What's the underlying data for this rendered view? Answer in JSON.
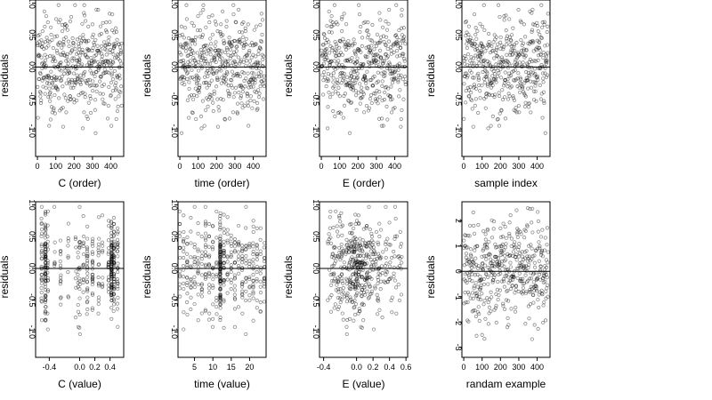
{
  "figure": {
    "background": "#ffffff",
    "point_color": "#000000",
    "point_opacity": 0.45
  },
  "chart_data": [
    {
      "type": "scatter",
      "xlabel": "C (order)",
      "ylabel": "residuals",
      "xlim": [
        -10,
        470
      ],
      "ylim": [
        -1.4,
        1.05
      ],
      "xticks": [
        0,
        100,
        200,
        300,
        400
      ],
      "xtick_labels": [
        "0",
        "100",
        "200",
        "300",
        "400"
      ],
      "yticks": [
        -1.0,
        -0.5,
        0.0,
        0.5,
        1.0
      ],
      "ytick_labels": [
        "-1.0",
        "-0.5",
        "0.0",
        "0.5",
        "1.0"
      ],
      "hline": 0,
      "points": []
    },
    {
      "type": "scatter",
      "xlabel": "time (order)",
      "ylabel": "residuals",
      "xlim": [
        -10,
        470
      ],
      "ylim": [
        -1.4,
        1.05
      ],
      "xticks": [
        0,
        100,
        200,
        300,
        400
      ],
      "xtick_labels": [
        "0",
        "100",
        "200",
        "300",
        "400"
      ],
      "yticks": [
        -1.0,
        -0.5,
        0.0,
        0.5,
        1.0
      ],
      "ytick_labels": [
        "-1.0",
        "-0.5",
        "0.0",
        "0.5",
        "1.0"
      ],
      "hline": 0,
      "points": []
    },
    {
      "type": "scatter",
      "xlabel": "E (order)",
      "ylabel": "residuals",
      "xlim": [
        -10,
        470
      ],
      "ylim": [
        -1.4,
        1.05
      ],
      "xticks": [
        0,
        100,
        200,
        300,
        400
      ],
      "xtick_labels": [
        "0",
        "100",
        "200",
        "300",
        "400"
      ],
      "yticks": [
        -1.0,
        -0.5,
        0.0,
        0.5,
        1.0
      ],
      "ytick_labels": [
        "-1.0",
        "-0.5",
        "0.0",
        "0.5",
        "1.0"
      ],
      "hline": 0,
      "points": []
    },
    {
      "type": "scatter",
      "xlabel": "sample index",
      "ylabel": "residuals",
      "xlim": [
        -10,
        470
      ],
      "ylim": [
        -1.4,
        1.05
      ],
      "xticks": [
        0,
        100,
        200,
        300,
        400
      ],
      "xtick_labels": [
        "0",
        "100",
        "200",
        "300",
        "400"
      ],
      "yticks": [
        -1.0,
        -0.5,
        0.0,
        0.5,
        1.0
      ],
      "ytick_labels": [
        "-1.0",
        "-0.5",
        "0.0",
        "0.5",
        "1.0"
      ],
      "hline": 0,
      "points": []
    },
    {
      "type": "scatter",
      "xlabel": "C (value)",
      "ylabel": "residuals",
      "xlim": [
        -0.58,
        0.58
      ],
      "ylim": [
        -1.4,
        1.05
      ],
      "xticks": [
        -0.4,
        0.0,
        0.2,
        0.4
      ],
      "xtick_labels": [
        "-0.4",
        "0.0",
        "0.2",
        "0.4"
      ],
      "yticks": [
        -1.0,
        -0.5,
        0.0,
        0.5,
        1.0
      ],
      "ytick_labels": [
        "-1.0",
        "-0.5",
        "0.0",
        "0.5",
        "1.0"
      ],
      "hline": 0,
      "points": []
    },
    {
      "type": "scatter",
      "xlabel": "time (value)",
      "ylabel": "residuals",
      "xlim": [
        0.5,
        24.5
      ],
      "ylim": [
        -1.4,
        1.05
      ],
      "xticks": [
        5,
        10,
        15,
        20
      ],
      "xtick_labels": [
        "5",
        "10",
        "15",
        "20"
      ],
      "yticks": [
        -1.0,
        -0.5,
        0.0,
        0.5,
        1.0
      ],
      "ytick_labels": [
        "-1.0",
        "-0.5",
        "0.0",
        "0.5",
        "1.0"
      ],
      "hline": 0,
      "points": []
    },
    {
      "type": "scatter",
      "xlabel": "E (value)",
      "ylabel": "residuals",
      "xlim": [
        -0.45,
        0.62
      ],
      "ylim": [
        -1.4,
        1.05
      ],
      "xticks": [
        -0.4,
        0.0,
        0.2,
        0.4,
        0.6
      ],
      "xtick_labels": [
        "-0.4",
        "0.0",
        "0.2",
        "0.4",
        "0.6"
      ],
      "yticks": [
        -1.0,
        -0.5,
        0.0,
        0.5,
        1.0
      ],
      "ytick_labels": [
        "-1.0",
        "-0.5",
        "0.0",
        "0.5",
        "1.0"
      ],
      "hline": 0,
      "points": []
    },
    {
      "type": "scatter",
      "xlabel": "randam example",
      "ylabel": "residuals",
      "xlim": [
        -10,
        470
      ],
      "ylim": [
        -3.4,
        2.75
      ],
      "xticks": [
        0,
        100,
        200,
        300,
        400
      ],
      "xtick_labels": [
        "0",
        "100",
        "200",
        "300",
        "400"
      ],
      "yticks": [
        -3,
        -2,
        -1,
        0,
        1,
        2
      ],
      "ytick_labels": [
        "-3",
        "-2",
        "-1",
        "0",
        "1",
        "2"
      ],
      "hline": 0,
      "points": []
    }
  ]
}
